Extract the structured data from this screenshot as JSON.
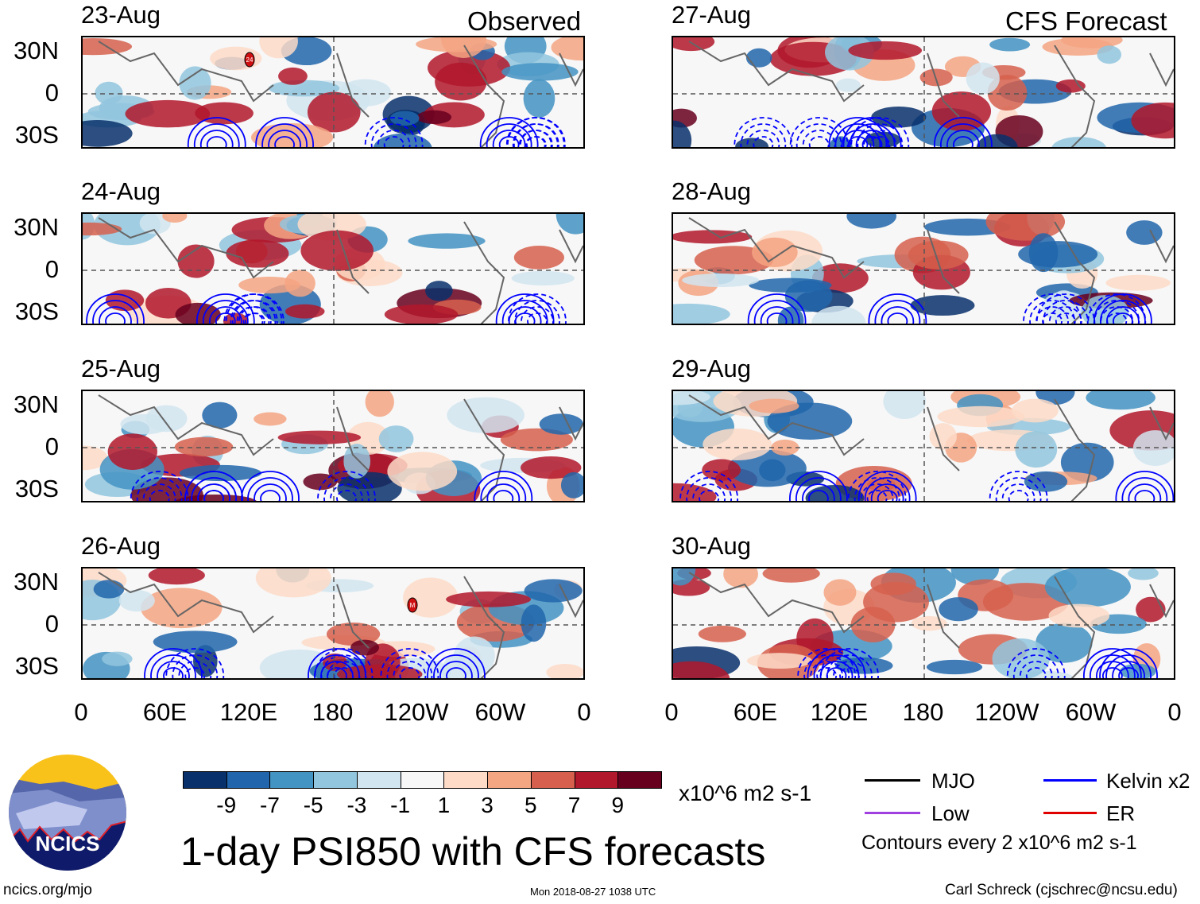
{
  "header": {
    "left_label": "Observed",
    "right_label": "CFS Forecast"
  },
  "panels": {
    "observed": [
      {
        "date": "23-Aug",
        "storm_label": "24"
      },
      {
        "date": "24-Aug"
      },
      {
        "date": "25-Aug"
      },
      {
        "date": "26-Aug",
        "storm_label": "M"
      }
    ],
    "forecast": [
      {
        "date": "27-Aug"
      },
      {
        "date": "28-Aug"
      },
      {
        "date": "29-Aug"
      },
      {
        "date": "30-Aug"
      }
    ]
  },
  "axes": {
    "lat_labels": [
      "30N",
      "0",
      "30S"
    ],
    "lon_labels": [
      "0",
      "60E",
      "120E",
      "180",
      "120W",
      "60W",
      "0"
    ]
  },
  "colorbar": {
    "colors": [
      "#08306b",
      "#2166ac",
      "#4393c3",
      "#92c5de",
      "#d1e5f0",
      "#f7f7f7",
      "#fddbc7",
      "#f4a582",
      "#d6604d",
      "#b2182b",
      "#67001f"
    ],
    "labels": [
      "-9",
      "-7",
      "-5",
      "-3",
      "-1",
      "1",
      "3",
      "5",
      "7",
      "9"
    ],
    "units": "x10^6 m2 s-1"
  },
  "legend": {
    "items": [
      {
        "label": "MJO",
        "color": "#000000"
      },
      {
        "label": "Kelvin x2",
        "color": "#0000ff"
      },
      {
        "label": "Low",
        "color": "#a040e0"
      },
      {
        "label": "ER",
        "color": "#e00000"
      }
    ],
    "contour_note": "Contours every 2 x10^6 m2 s-1"
  },
  "title": "1-day PSI850 with CFS forecasts",
  "logo": {
    "text": "NCICS"
  },
  "footer": {
    "url": "ncics.org/mjo",
    "timestamp": "Mon 2018-08-27 1038 UTC",
    "author": "Carl Schreck (cjschrec@ncsu.edu)"
  }
}
